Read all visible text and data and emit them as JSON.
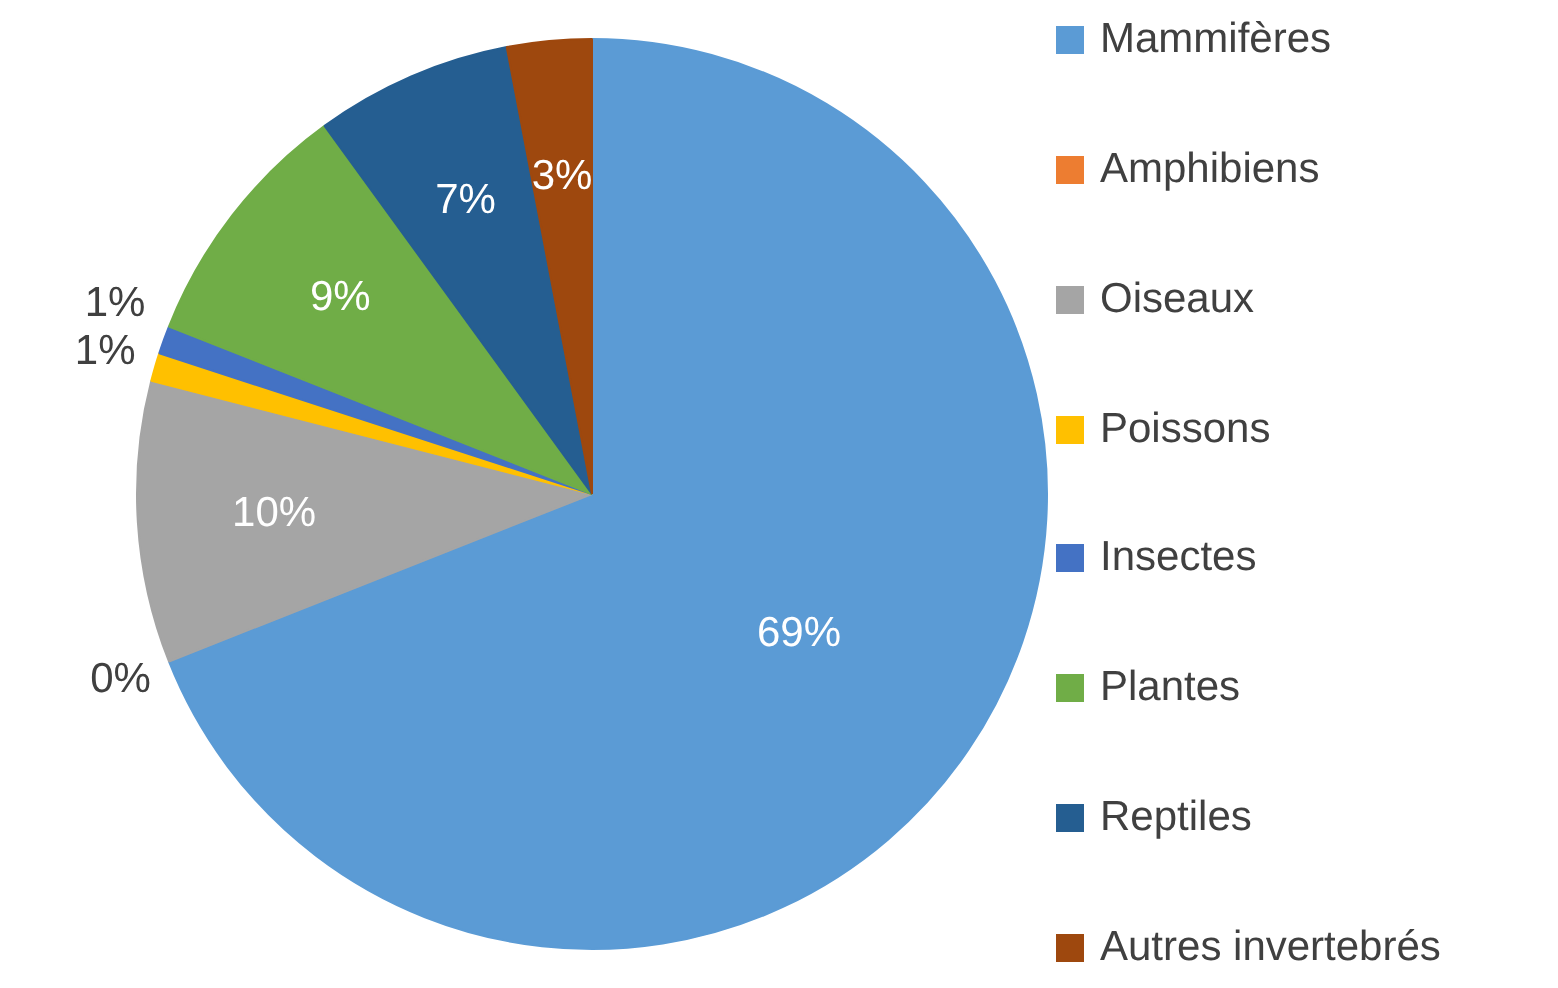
{
  "chart_data": {
    "type": "pie",
    "categories": [
      "Mammifères",
      "Amphibiens",
      "Oiseaux",
      "Poissons",
      "Insectes",
      "Plantes",
      "Reptiles",
      "Autres invertebrés"
    ],
    "values": [
      69,
      0,
      10,
      1,
      1,
      9,
      7,
      3
    ],
    "value_labels": [
      "69%",
      "0%",
      "10%",
      "1%",
      "1%",
      "9%",
      "7%",
      "3%"
    ],
    "colors": [
      "#5b9bd5",
      "#ed7d31",
      "#a5a5a5",
      "#ffc000",
      "#4472c4",
      "#70ad47",
      "#255e91",
      "#9e480e"
    ],
    "legend": "right"
  }
}
